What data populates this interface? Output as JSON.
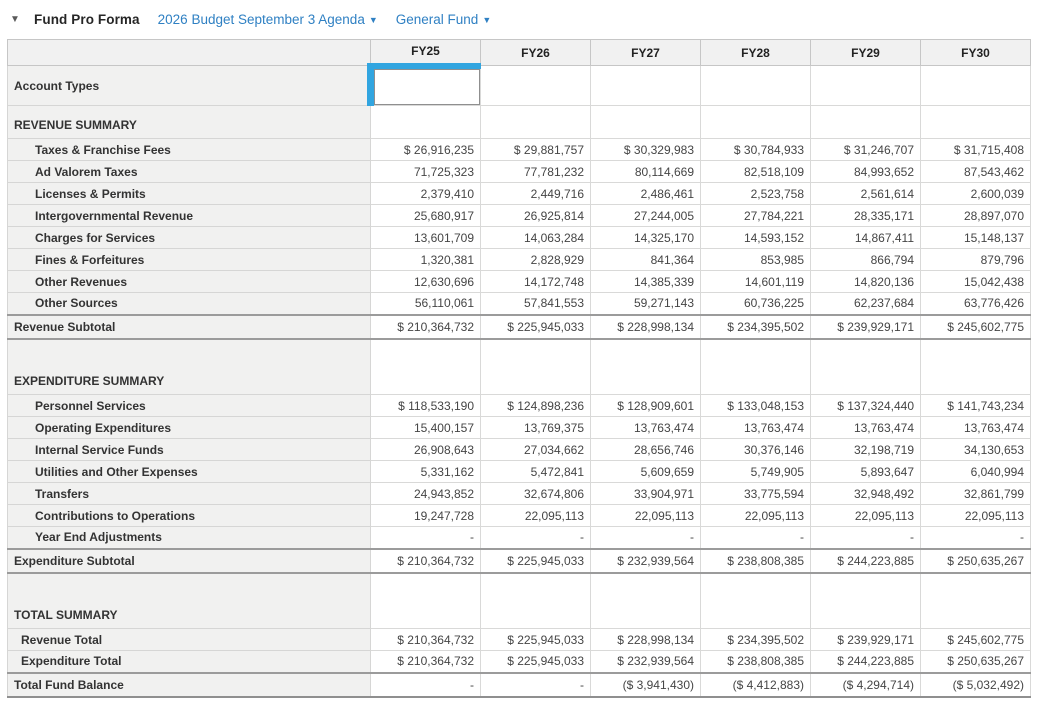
{
  "header": {
    "collapse_icon": "▼",
    "title": "Fund Pro Forma",
    "budget_dropdown": "2026 Budget September 3 Agenda",
    "fund_dropdown": "General Fund",
    "caret": "▼"
  },
  "colors": {
    "link_blue": "#2f80c3",
    "selection_blue": "#31a5e0",
    "label_bg": "#f1f1f0",
    "grid_line": "#d9d9d8",
    "heavy_line": "#9b9b9b"
  },
  "table": {
    "columns": [
      "FY25",
      "FY26",
      "FY27",
      "FY28",
      "FY29",
      "FY30"
    ],
    "selected_column": "FY25",
    "rows": [
      {
        "type": "field",
        "label": "Account Types",
        "selected": true,
        "values": [
          "",
          "",
          "",
          "",
          "",
          ""
        ]
      },
      {
        "type": "section",
        "label": "REVENUE SUMMARY"
      },
      {
        "type": "detail",
        "label": "Taxes & Franchise Fees",
        "values": [
          "$ 26,916,235",
          "$ 29,881,757",
          "$ 30,329,983",
          "$ 30,784,933",
          "$ 31,246,707",
          "$ 31,715,408"
        ]
      },
      {
        "type": "detail",
        "label": "Ad Valorem Taxes",
        "values": [
          "71,725,323",
          "77,781,232",
          "80,114,669",
          "82,518,109",
          "84,993,652",
          "87,543,462"
        ]
      },
      {
        "type": "detail",
        "label": "Licenses & Permits",
        "values": [
          "2,379,410",
          "2,449,716",
          "2,486,461",
          "2,523,758",
          "2,561,614",
          "2,600,039"
        ]
      },
      {
        "type": "detail",
        "label": "Intergovernmental Revenue",
        "values": [
          "25,680,917",
          "26,925,814",
          "27,244,005",
          "27,784,221",
          "28,335,171",
          "28,897,070"
        ]
      },
      {
        "type": "detail",
        "label": "Charges for Services",
        "values": [
          "13,601,709",
          "14,063,284",
          "14,325,170",
          "14,593,152",
          "14,867,411",
          "15,148,137"
        ]
      },
      {
        "type": "detail",
        "label": "Fines & Forfeitures",
        "values": [
          "1,320,381",
          "2,828,929",
          "841,364",
          "853,985",
          "866,794",
          "879,796"
        ]
      },
      {
        "type": "detail",
        "label": "Other Revenues",
        "values": [
          "12,630,696",
          "14,172,748",
          "14,385,339",
          "14,601,119",
          "14,820,136",
          "15,042,438"
        ]
      },
      {
        "type": "detail",
        "label": "Other Sources",
        "values": [
          "56,110,061",
          "57,841,553",
          "59,271,143",
          "60,736,225",
          "62,237,684",
          "63,776,426"
        ]
      },
      {
        "type": "subtotal",
        "label": "Revenue Subtotal",
        "values": [
          "$ 210,364,732",
          "$ 225,945,033",
          "$ 228,998,134",
          "$ 234,395,502",
          "$ 239,929,171",
          "$ 245,602,775"
        ]
      },
      {
        "type": "section2",
        "label": "EXPENDITURE SUMMARY"
      },
      {
        "type": "detail",
        "label": "Personnel Services",
        "values": [
          "$ 118,533,190",
          "$ 124,898,236",
          "$ 128,909,601",
          "$ 133,048,153",
          "$ 137,324,440",
          "$ 141,743,234"
        ]
      },
      {
        "type": "detail",
        "label": "Operating Expenditures",
        "values": [
          "15,400,157",
          "13,769,375",
          "13,763,474",
          "13,763,474",
          "13,763,474",
          "13,763,474"
        ]
      },
      {
        "type": "detail",
        "label": "Internal Service Funds",
        "values": [
          "26,908,643",
          "27,034,662",
          "28,656,746",
          "30,376,146",
          "32,198,719",
          "34,130,653"
        ]
      },
      {
        "type": "detail",
        "label": "Utilities and Other Expenses",
        "values": [
          "5,331,162",
          "5,472,841",
          "5,609,659",
          "5,749,905",
          "5,893,647",
          "6,040,994"
        ]
      },
      {
        "type": "detail",
        "label": "Transfers",
        "values": [
          "24,943,852",
          "32,674,806",
          "33,904,971",
          "33,775,594",
          "32,948,492",
          "32,861,799"
        ]
      },
      {
        "type": "detail",
        "label": "Contributions to Operations",
        "values": [
          "19,247,728",
          "22,095,113",
          "22,095,113",
          "22,095,113",
          "22,095,113",
          "22,095,113"
        ]
      },
      {
        "type": "detail",
        "label": "Year End Adjustments",
        "values": [
          "-",
          "-",
          "-",
          "-",
          "-",
          "-"
        ]
      },
      {
        "type": "subtotal",
        "label": "Expenditure Subtotal",
        "values": [
          "$ 210,364,732",
          "$ 225,945,033",
          "$ 232,939,564",
          "$ 238,808,385",
          "$ 244,223,885",
          "$ 250,635,267"
        ]
      },
      {
        "type": "section2",
        "label": "TOTAL SUMMARY"
      },
      {
        "type": "total",
        "label": "Revenue Total",
        "values": [
          "$ 210,364,732",
          "$ 225,945,033",
          "$ 228,998,134",
          "$ 234,395,502",
          "$ 239,929,171",
          "$ 245,602,775"
        ]
      },
      {
        "type": "total",
        "label": "Expenditure Total",
        "values": [
          "$ 210,364,732",
          "$ 225,945,033",
          "$ 232,939,564",
          "$ 238,808,385",
          "$ 244,223,885",
          "$ 250,635,267"
        ]
      },
      {
        "type": "grand",
        "label": "Total Fund Balance",
        "values": [
          "-",
          "-",
          "($ 3,941,430)",
          "($ 4,412,883)",
          "($ 4,294,714)",
          "($ 5,032,492)"
        ]
      }
    ]
  }
}
